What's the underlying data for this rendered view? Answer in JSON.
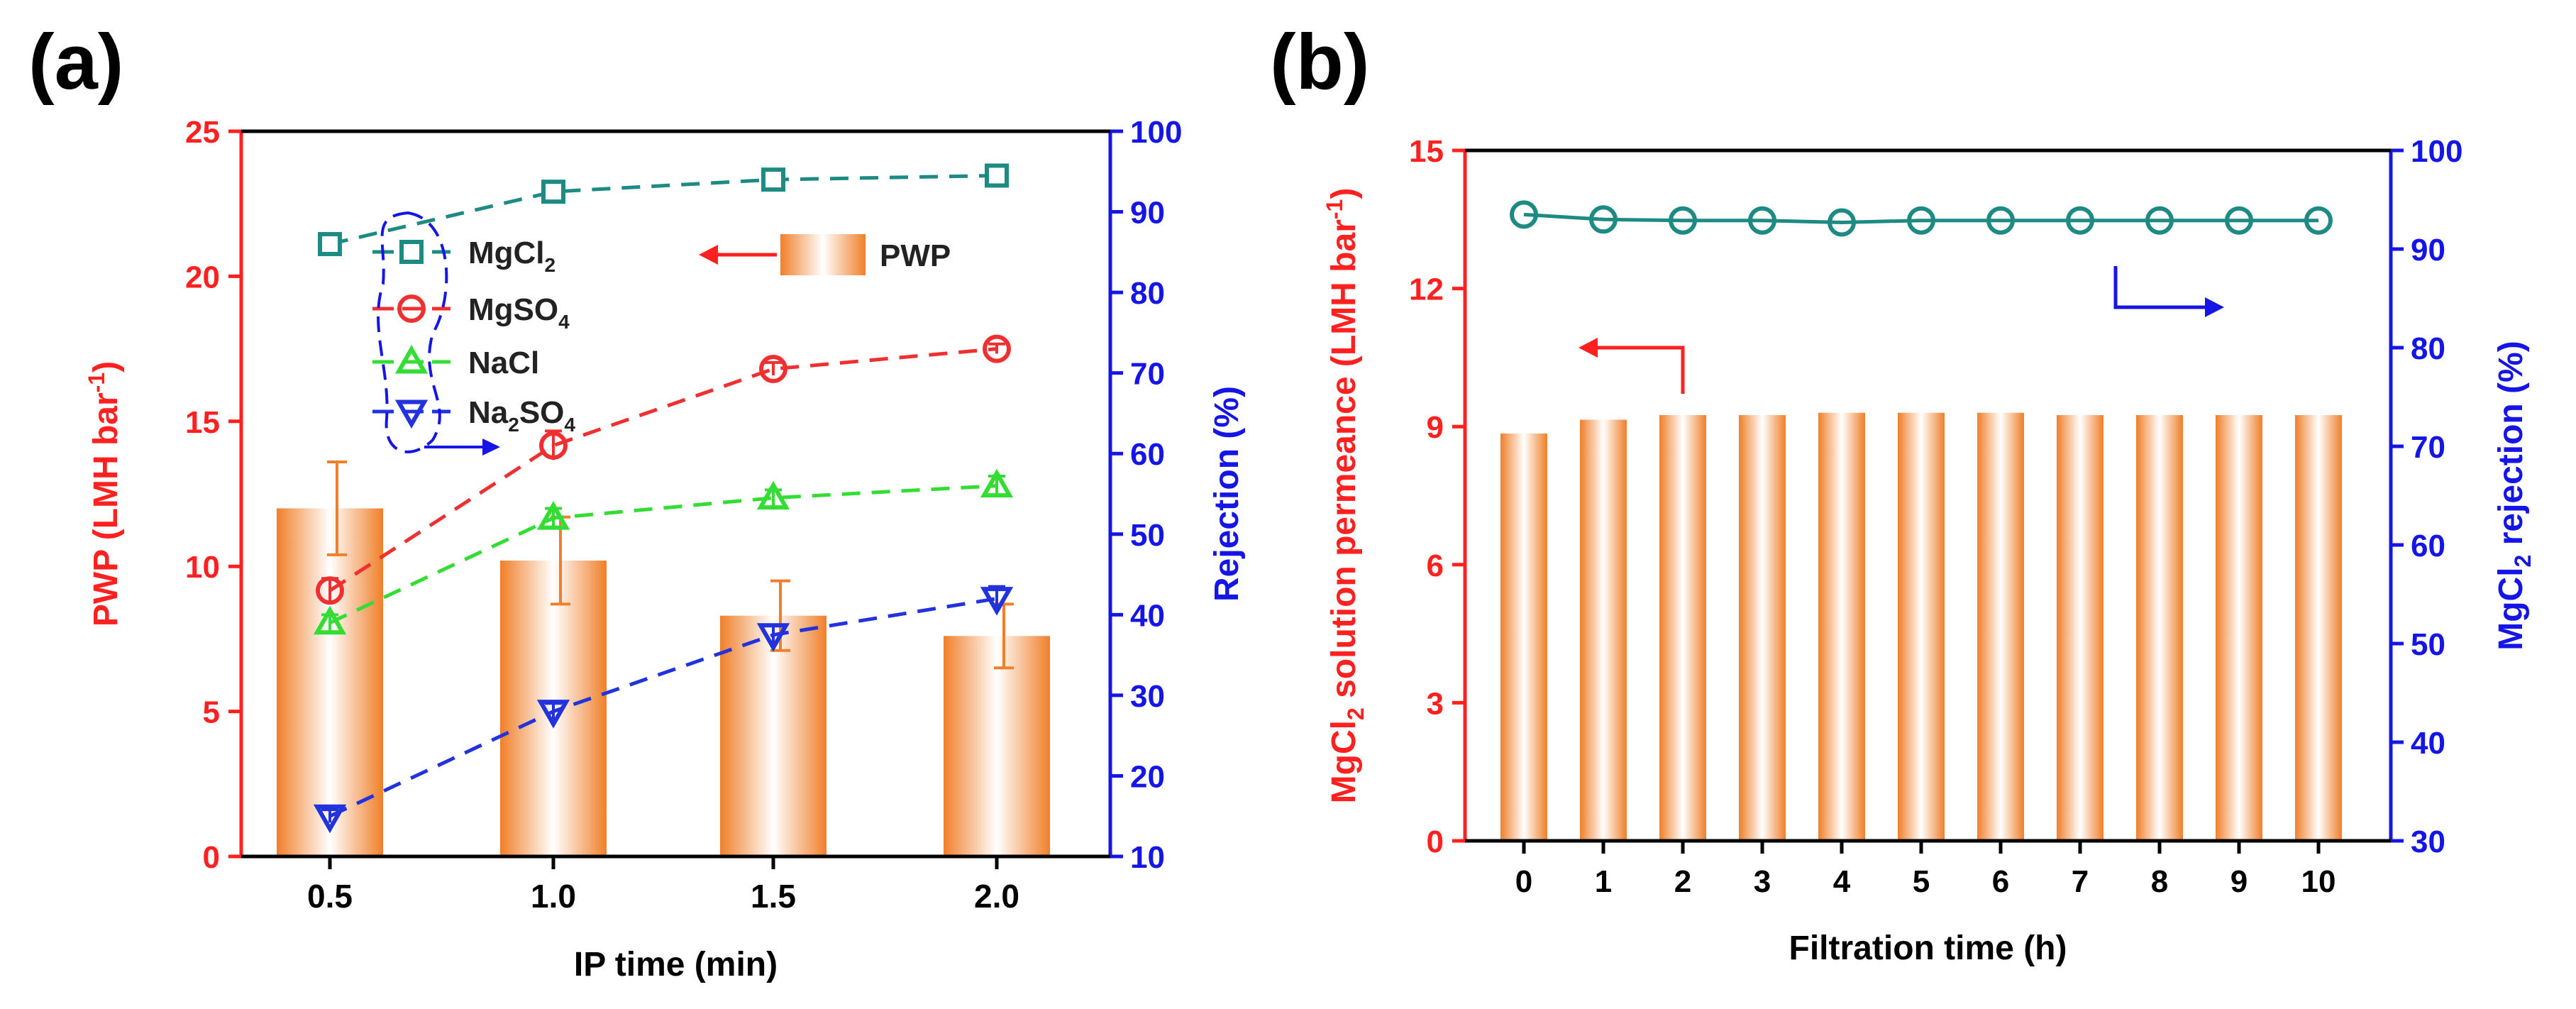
{
  "colors": {
    "bar_edge": "#f07f2a",
    "bar_center": "#ffffff",
    "left_axis": "#ff2020",
    "right_axis": "#1515e6",
    "teal": "#1e8a84",
    "red": "#f03030",
    "green": "#33dd33",
    "blue": "#2233dd",
    "axis": "#000000"
  },
  "chart_data": [
    {
      "panel": "(a)",
      "type": "bar",
      "xlabel": "IP time (min)",
      "categories": [
        "0.5",
        "1.0",
        "1.5",
        "2.0"
      ],
      "left_axis": {
        "label_main": "PWP (LMH bar",
        "label_sup": "-1",
        "label_end": ")",
        "ylim": [
          0,
          25
        ],
        "ticks": [
          "0",
          "5",
          "10",
          "15",
          "20",
          "25"
        ]
      },
      "right_axis": {
        "label": "Rejection (%)",
        "ylim": [
          10,
          100
        ],
        "ticks": [
          "10",
          "20",
          "30",
          "40",
          "50",
          "60",
          "70",
          "80",
          "90",
          "100"
        ]
      },
      "bars": {
        "name": "PWP",
        "values": [
          12.0,
          10.2,
          8.3,
          7.6
        ],
        "errors": [
          1.6,
          1.5,
          1.2,
          1.1
        ]
      },
      "series": [
        {
          "name": "MgCl2",
          "label_main": "MgCl",
          "label_sub": "2",
          "label_tail": "",
          "marker": "square",
          "color_key": "teal",
          "values": [
            86,
            92.5,
            94,
            94.5
          ],
          "errors": [
            0,
            0,
            0,
            0
          ]
        },
        {
          "name": "MgSO4",
          "label_main": "MgSO",
          "label_sub": "4",
          "label_tail": "",
          "marker": "circle",
          "color_key": "red",
          "values": [
            43,
            61,
            70.5,
            73
          ],
          "errors": [
            1.5,
            1.8,
            0.8,
            0.6
          ]
        },
        {
          "name": "NaCl",
          "label_main": "NaCl",
          "label_sub": "",
          "label_tail": "",
          "marker": "triangle-up",
          "color_key": "green",
          "values": [
            39,
            52,
            54.5,
            56
          ],
          "errors": [
            1.0,
            1.2,
            1.0,
            1.2
          ]
        },
        {
          "name": "Na2SO4",
          "label_main": "Na",
          "label_sub": "2",
          "label_tail": "SO",
          "label_sub2": "4",
          "marker": "triangle-down",
          "color_key": "blue",
          "values": [
            15,
            28,
            37.5,
            42
          ],
          "errors": [
            0.8,
            1.0,
            1.2,
            1.5
          ]
        }
      ],
      "legend_bar_label": "PWP"
    },
    {
      "panel": "(b)",
      "type": "bar",
      "xlabel": "Filtration time (h)",
      "categories": [
        "0",
        "1",
        "2",
        "3",
        "4",
        "5",
        "6",
        "7",
        "8",
        "9",
        "10"
      ],
      "left_axis": {
        "label_pre": "MgCl",
        "label_sub": "2",
        "label_main": " solution permeance (LMH bar",
        "label_sup": "-1",
        "label_end": ")",
        "ylim": [
          0,
          15
        ],
        "ticks": [
          "0",
          "3",
          "6",
          "9",
          "12",
          "15"
        ]
      },
      "right_axis": {
        "label_pre": "MgCl",
        "label_sub": "2",
        "label_main": " rejection (%)",
        "ylim": [
          30,
          100
        ],
        "ticks": [
          "30",
          "40",
          "50",
          "60",
          "70",
          "80",
          "90",
          "100"
        ]
      },
      "bars": {
        "name": "MgCl2 solution permeance",
        "values": [
          8.85,
          9.15,
          9.25,
          9.25,
          9.3,
          9.3,
          9.3,
          9.25,
          9.25,
          9.25,
          9.25
        ]
      },
      "series": [
        {
          "name": "MgCl2 rejection",
          "marker": "circle",
          "color_key": "teal",
          "values": [
            93.5,
            93.0,
            92.9,
            92.9,
            92.7,
            92.9,
            92.9,
            92.9,
            92.9,
            92.9,
            92.9
          ]
        }
      ]
    }
  ]
}
